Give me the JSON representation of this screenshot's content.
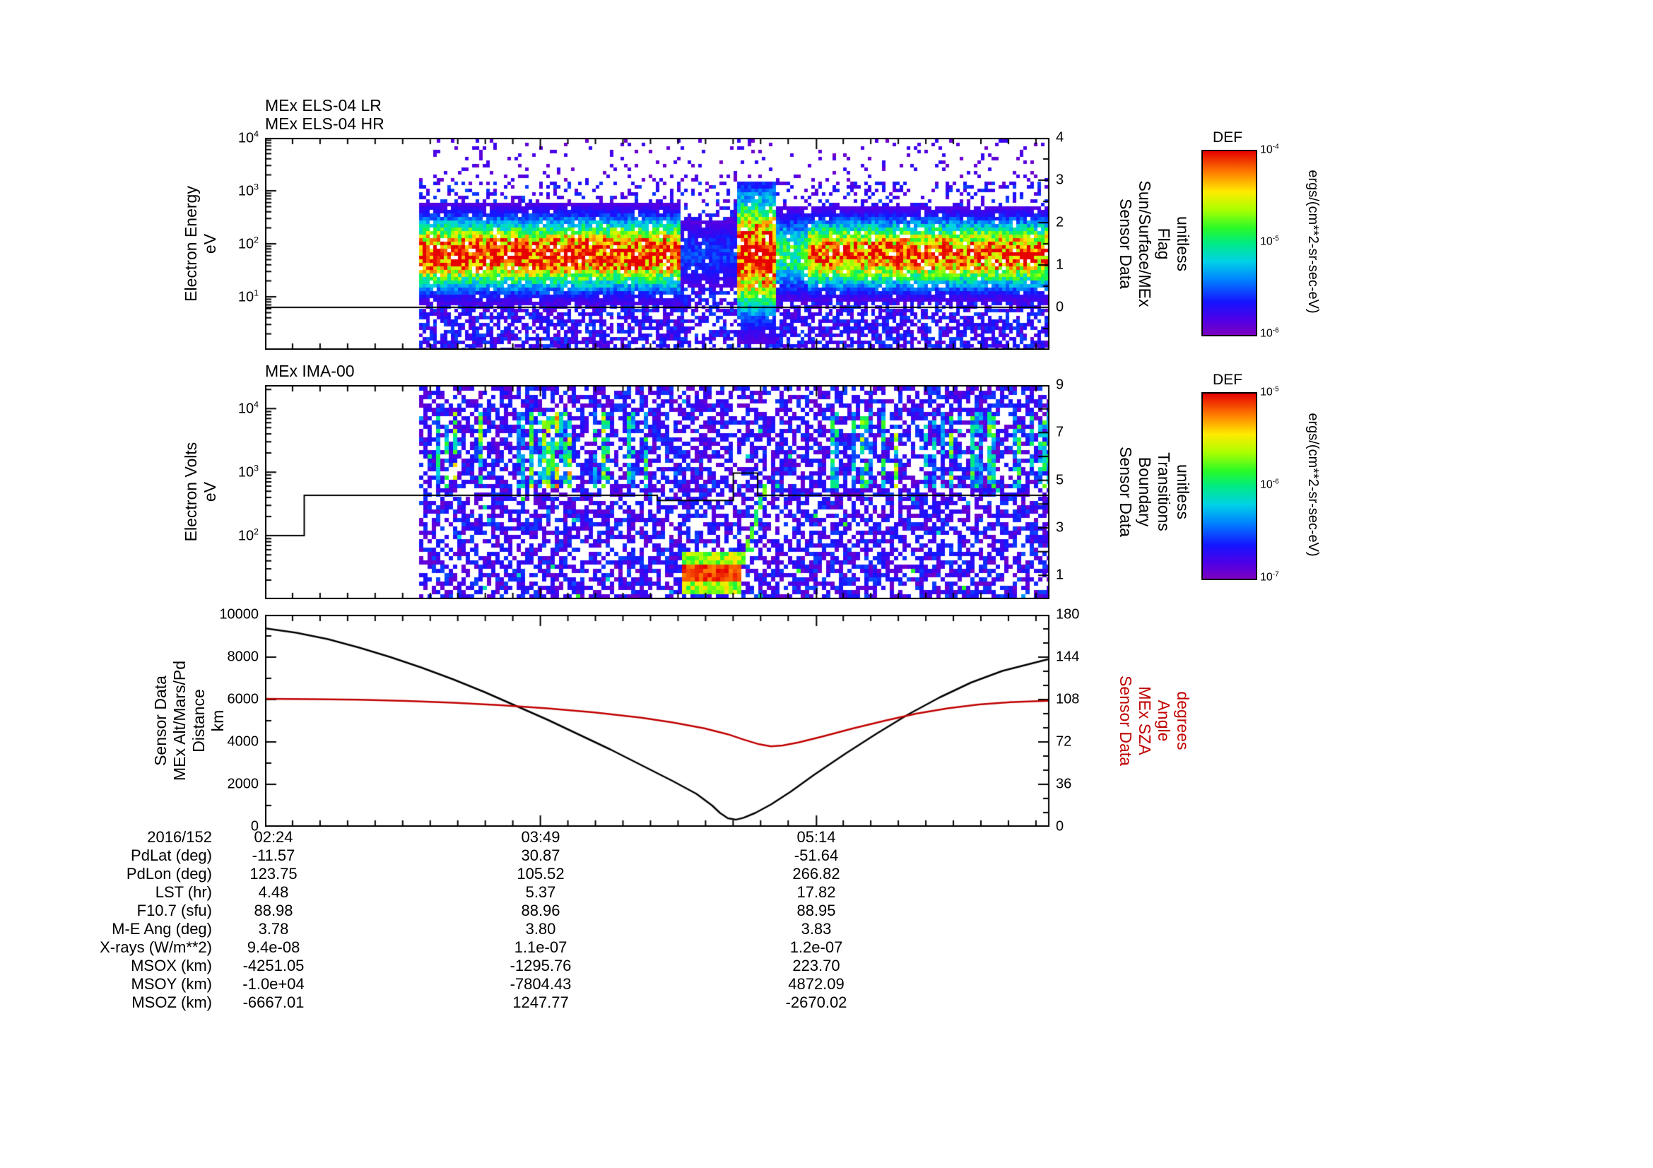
{
  "chart_data": [
    {
      "id": "els_spectrogram",
      "type": "heatmap",
      "titles": [
        "MEx ELS-04 LR",
        "MEx ELS-04 HR"
      ],
      "ylabel_lines": [
        "Electron Energy",
        "eV"
      ],
      "yaxis": {
        "scale": "log",
        "exp_range": [
          0,
          4
        ],
        "tick_exps": [
          4,
          3,
          2,
          1
        ]
      },
      "right_axis": {
        "label_lines": [
          "Sensor Data",
          "Sun/Surface/MEx",
          "Flag",
          "unitless"
        ],
        "range": [
          -1,
          4
        ],
        "ticks": [
          4,
          3,
          2,
          1,
          0
        ],
        "flag_value": 0
      },
      "data_start_frac": 0.196,
      "band_center_exp": 1.8,
      "segments": [
        [
          0.196,
          0.527,
          1.0,
          0.42
        ],
        [
          0.527,
          0.601,
          0.22,
          0.42
        ],
        [
          0.601,
          0.649,
          1.05,
          0.72
        ],
        [
          0.649,
          0.689,
          0.55,
          0.45
        ],
        [
          0.689,
          1.001,
          0.95,
          0.4
        ]
      ],
      "colorbar": {
        "title": "DEF",
        "tick_exps": [
          -4,
          -5,
          -6
        ],
        "units": "ergs/(cm**2-sr-sec-eV)"
      }
    },
    {
      "id": "ima_spectrogram",
      "type": "heatmap",
      "title": "MEx IMA-00",
      "ylabel_lines": [
        "Electron Volts",
        "eV"
      ],
      "yaxis": {
        "scale": "log",
        "exp_range": [
          1,
          4.37
        ],
        "tick_exps": [
          4,
          3,
          2
        ]
      },
      "right_axis": {
        "label_lines": [
          "Sensor Data",
          "Boundary",
          "Transitions",
          "unitless"
        ],
        "range": [
          0,
          9
        ],
        "ticks": [
          9,
          7,
          5,
          3,
          1
        ]
      },
      "data_start_frac": 0.196,
      "boundary_steps": [
        [
          0,
          0.05,
          2.67
        ],
        [
          0.05,
          0.5,
          4.37
        ],
        [
          0.5,
          0.597,
          4.15
        ],
        [
          0.597,
          0.628,
          5.3
        ],
        [
          0.628,
          1.0,
          4.37
        ]
      ],
      "stripe_regions": [
        [
          0.196,
          0.5
        ],
        [
          0.7,
          1.0
        ]
      ],
      "stripe_exp_band": [
        2.75,
        3.95
      ],
      "arc": {
        "t0": 0.527,
        "t1": 0.638,
        "flat_exp": 1.42,
        "rise_end_exp": 2.87
      },
      "colorbar": {
        "title": "DEF",
        "tick_exps": [
          -5,
          -6,
          -7
        ],
        "units": "ergs/(cm**2-sr-sec-eV)"
      }
    },
    {
      "id": "alt_sza_lines",
      "type": "line",
      "left_axis": {
        "label_lines": [
          "Sensor Data",
          "MEx Alt/Mars/Pd",
          "Distance",
          "km"
        ],
        "range": [
          0,
          10000
        ],
        "ticks": [
          0,
          2000,
          4000,
          6000,
          8000,
          10000
        ]
      },
      "right_axis": {
        "label_lines": [
          "Sensor Data",
          "MEx SZA",
          "Angle",
          "degrees"
        ],
        "range": [
          0,
          180
        ],
        "ticks": [
          0,
          36,
          72,
          108,
          144,
          180
        ],
        "color": "#c00000"
      },
      "x_ticks": {
        "labels": [
          "02:24",
          "03:49",
          "05:14"
        ],
        "fracs": [
          0,
          0.351,
          0.703
        ]
      },
      "series": [
        {
          "name": "MEx Alt/Mars/Pd Distance",
          "axis": "left",
          "color": "#000000",
          "x": [
            0,
            0.04,
            0.08,
            0.12,
            0.16,
            0.2,
            0.24,
            0.28,
            0.32,
            0.36,
            0.4,
            0.44,
            0.48,
            0.52,
            0.55,
            0.57,
            0.58,
            0.59,
            0.6,
            0.61,
            0.625,
            0.645,
            0.67,
            0.7,
            0.74,
            0.78,
            0.82,
            0.86,
            0.9,
            0.94,
            1.0
          ],
          "y": [
            9350,
            9150,
            8850,
            8450,
            8000,
            7500,
            6950,
            6350,
            5700,
            5050,
            4350,
            3650,
            2900,
            2150,
            1550,
            1000,
            650,
            400,
            330,
            420,
            650,
            1050,
            1650,
            2450,
            3450,
            4400,
            5300,
            6100,
            6800,
            7350,
            7900
          ]
        },
        {
          "name": "MEx SZA Angle",
          "axis": "right",
          "color": "#c00000",
          "x": [
            0,
            0.06,
            0.12,
            0.18,
            0.24,
            0.3,
            0.36,
            0.42,
            0.48,
            0.52,
            0.56,
            0.59,
            0.61,
            0.63,
            0.645,
            0.66,
            0.68,
            0.71,
            0.75,
            0.79,
            0.83,
            0.87,
            0.91,
            0.95,
            1.0
          ],
          "y": [
            108.6,
            108.3,
            107.8,
            106.8,
            105.3,
            103.2,
            100.5,
            97.0,
            92.5,
            88.5,
            83.5,
            78.5,
            74.0,
            70.0,
            68.3,
            69.0,
            71.5,
            76.5,
            83.5,
            90.0,
            96.0,
            100.5,
            103.8,
            105.8,
            107.0
          ]
        }
      ]
    }
  ],
  "table": {
    "rows": [
      {
        "label": "2016/152",
        "values": [
          "02:24",
          "03:49",
          "05:14"
        ]
      },
      {
        "label": "PdLat (deg)",
        "values": [
          "-11.57",
          "30.87",
          "-51.64"
        ]
      },
      {
        "label": "PdLon (deg)",
        "values": [
          "123.75",
          "105.52",
          "266.82"
        ]
      },
      {
        "label": "LST (hr)",
        "values": [
          "4.48",
          "5.37",
          "17.82"
        ]
      },
      {
        "label": "F10.7 (sfu)",
        "values": [
          "88.98",
          "88.96",
          "88.95"
        ]
      },
      {
        "label": "M-E Ang (deg)",
        "values": [
          "3.78",
          "3.80",
          "3.83"
        ]
      },
      {
        "label": "X-rays (W/m**2)",
        "values": [
          "9.4e-08",
          "1.1e-07",
          "1.2e-07"
        ]
      },
      {
        "label": "MSOX (km)",
        "values": [
          "-4251.05",
          "-1295.76",
          "223.70"
        ]
      },
      {
        "label": "MSOY (km)",
        "values": [
          "-1.0e+04",
          "-7804.43",
          "4872.09"
        ]
      },
      {
        "label": "MSOZ (km)",
        "values": [
          "-6667.01",
          "1247.77",
          "-2670.02"
        ]
      }
    ]
  }
}
